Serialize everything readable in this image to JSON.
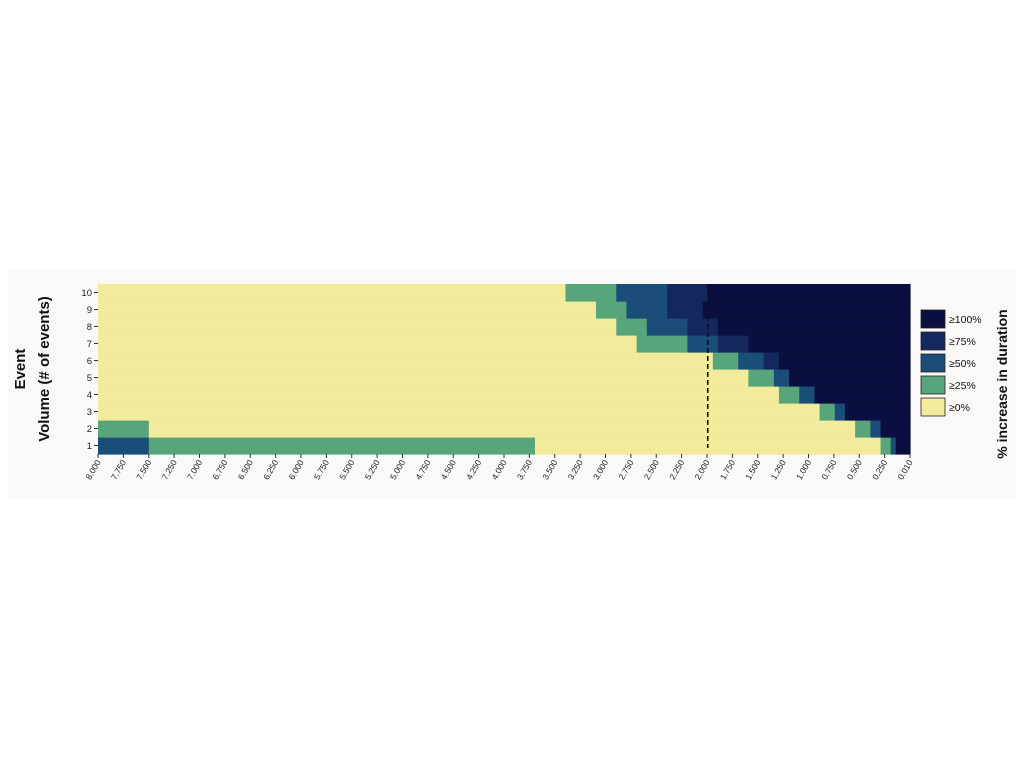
{
  "chart_data": {
    "type": "heatmap",
    "title": "",
    "ylabel": [
      "Event",
      "Volume (# of events)"
    ],
    "xlabel": "",
    "x_tick_labels": [
      "8.000",
      "7.750",
      "7.500",
      "7.250",
      "7.000",
      "6.750",
      "6.500",
      "6.250",
      "6.000",
      "5.750",
      "5.500",
      "5.250",
      "5.000",
      "4.750",
      "4.500",
      "4.250",
      "4.000",
      "3.750",
      "3.500",
      "3.250",
      "3.000",
      "2.750",
      "2.500",
      "2.250",
      "2.000",
      "1.750",
      "1.500",
      "1.250",
      "1.000",
      "0.750",
      "0.500",
      "0.250",
      "0.010"
    ],
    "y_tick_labels": [
      "1",
      "2",
      "3",
      "4",
      "5",
      "6",
      "7",
      "8",
      "9",
      "10"
    ],
    "x_range": [
      8.0,
      0.01
    ],
    "y_range": [
      1,
      10
    ],
    "reference_line": {
      "x": 2.0,
      "style": "dashed"
    },
    "legend": {
      "title": "% increase in duration",
      "placement": "right",
      "entries": [
        {
          "label": "≥100%",
          "color": "#0b0f3f"
        },
        {
          "label": "≥75%",
          "color": "#14285e"
        },
        {
          "label": "≥50%",
          "color": "#1a4d78"
        },
        {
          "label": "≥25%",
          "color": "#58a57b"
        },
        {
          "label": "≥0%",
          "color": "#f1eb9b"
        }
      ]
    },
    "class_index_note": "values are legend entry indices: 0=≥0%, 1=≥25%, 2=≥50%, 3=≥75%, 4=≥100%",
    "rows": [
      {
        "volume": 1,
        "segments": [
          [
            8.0,
            7.5,
            2
          ],
          [
            7.5,
            3.7,
            1
          ],
          [
            3.7,
            0.3,
            0
          ],
          [
            0.3,
            0.2,
            1
          ],
          [
            0.2,
            0.15,
            2
          ],
          [
            0.15,
            0.01,
            4
          ]
        ]
      },
      {
        "volume": 2,
        "segments": [
          [
            8.0,
            7.5,
            1
          ],
          [
            7.5,
            0.55,
            0
          ],
          [
            0.55,
            0.4,
            1
          ],
          [
            0.4,
            0.3,
            2
          ],
          [
            0.3,
            0.01,
            4
          ]
        ]
      },
      {
        "volume": 3,
        "segments": [
          [
            8.0,
            0.9,
            0
          ],
          [
            0.9,
            0.75,
            1
          ],
          [
            0.75,
            0.65,
            2
          ],
          [
            0.65,
            0.01,
            4
          ]
        ]
      },
      {
        "volume": 4,
        "segments": [
          [
            8.0,
            1.3,
            0
          ],
          [
            1.3,
            1.1,
            1
          ],
          [
            1.1,
            0.95,
            2
          ],
          [
            0.95,
            0.01,
            4
          ]
        ]
      },
      {
        "volume": 5,
        "segments": [
          [
            8.0,
            1.6,
            0
          ],
          [
            1.6,
            1.35,
            1
          ],
          [
            1.35,
            1.2,
            2
          ],
          [
            1.2,
            0.01,
            4
          ]
        ]
      },
      {
        "volume": 6,
        "segments": [
          [
            8.0,
            1.95,
            0
          ],
          [
            1.95,
            1.7,
            1
          ],
          [
            1.7,
            1.45,
            2
          ],
          [
            1.45,
            1.3,
            3
          ],
          [
            1.3,
            0.01,
            4
          ]
        ]
      },
      {
        "volume": 7,
        "segments": [
          [
            8.0,
            2.7,
            0
          ],
          [
            2.7,
            2.2,
            1
          ],
          [
            2.2,
            1.9,
            2
          ],
          [
            1.9,
            1.6,
            3
          ],
          [
            1.6,
            0.01,
            4
          ]
        ]
      },
      {
        "volume": 8,
        "segments": [
          [
            8.0,
            2.9,
            0
          ],
          [
            2.9,
            2.6,
            1
          ],
          [
            2.6,
            2.2,
            2
          ],
          [
            2.2,
            1.9,
            3
          ],
          [
            1.9,
            0.01,
            4
          ]
        ]
      },
      {
        "volume": 9,
        "segments": [
          [
            8.0,
            3.1,
            0
          ],
          [
            3.1,
            2.8,
            1
          ],
          [
            2.8,
            2.4,
            2
          ],
          [
            2.4,
            2.05,
            3
          ],
          [
            2.05,
            0.01,
            4
          ]
        ]
      },
      {
        "volume": 10,
        "segments": [
          [
            8.0,
            3.4,
            0
          ],
          [
            3.4,
            2.9,
            1
          ],
          [
            2.9,
            2.4,
            2
          ],
          [
            2.4,
            2.0,
            3
          ],
          [
            2.0,
            0.01,
            4
          ]
        ]
      }
    ]
  }
}
